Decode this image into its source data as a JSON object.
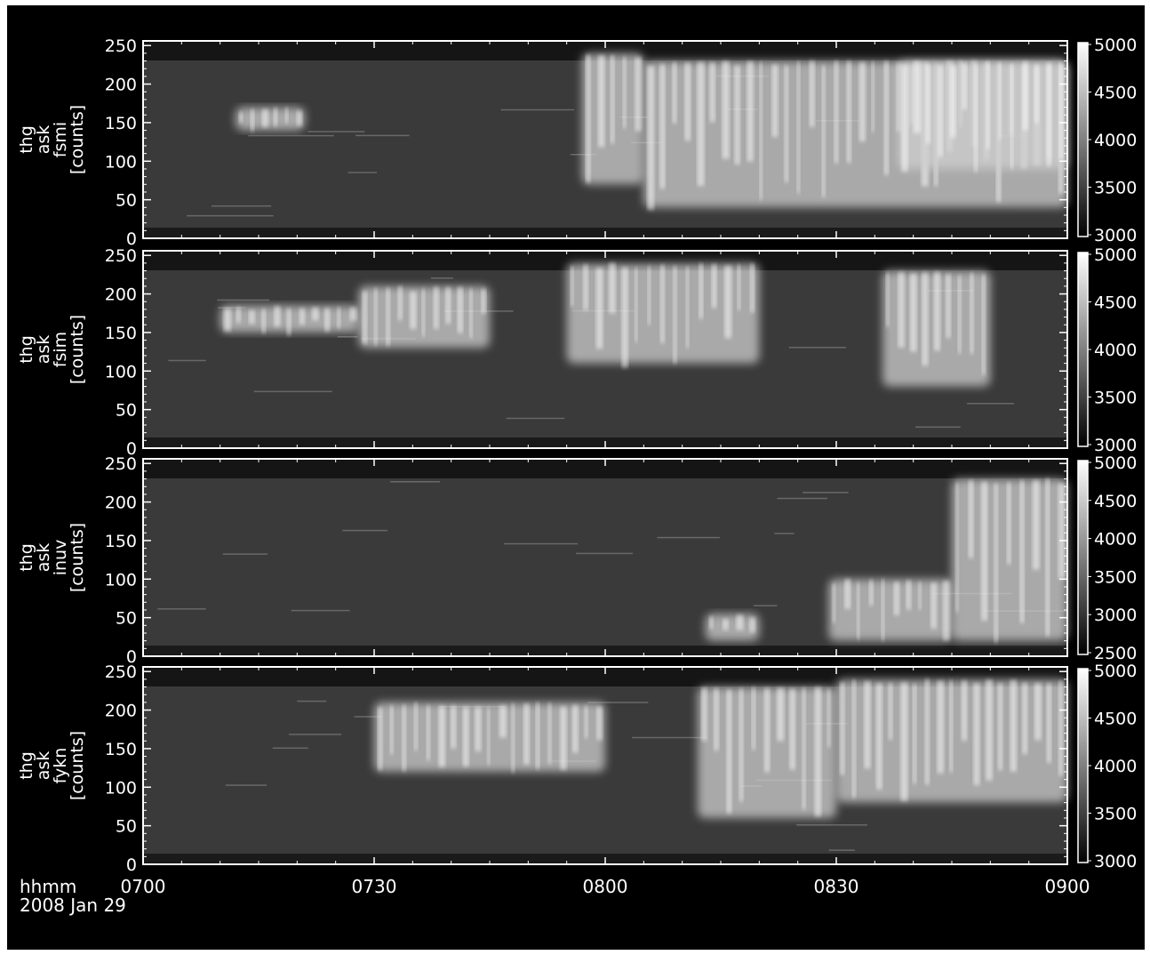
{
  "chart_data": {
    "type": "heatmap",
    "time_axis": {
      "tick_labels": [
        "0700",
        "0730",
        "0800",
        "0830",
        "0900"
      ],
      "unit_label": "hhmm",
      "date_label": "2008 Jan 29",
      "range": [
        "0700",
        "0900"
      ]
    },
    "panels": [
      {
        "ylabel": [
          "thg",
          "ask",
          "fsmi",
          "[counts]"
        ],
        "y_ticks": [
          "250",
          "200",
          "150",
          "100",
          "50",
          "0"
        ],
        "ylim": [
          0,
          256
        ],
        "colorbar": {
          "ticks": [
            "5000",
            "4500",
            "4000",
            "3500",
            "3000"
          ],
          "range": [
            3000,
            5000
          ]
        },
        "bright_features": [
          {
            "t_start": "0712",
            "t_end": "0721",
            "y_low": 140,
            "y_high": 170
          },
          {
            "t_start": "0757",
            "t_end": "0805",
            "y_low": 70,
            "y_high": 240
          },
          {
            "t_start": "0805",
            "t_end": "0900",
            "y_low": 40,
            "y_high": 230
          },
          {
            "t_start": "0838",
            "t_end": "0900",
            "y_low": 90,
            "y_high": 230
          }
        ]
      },
      {
        "ylabel": [
          "thg",
          "ask",
          "fsim",
          "[counts]"
        ],
        "y_ticks": [
          "250",
          "200",
          "150",
          "100",
          "50",
          "0"
        ],
        "ylim": [
          0,
          256
        ],
        "colorbar": {
          "ticks": [
            "5000",
            "4500",
            "4000",
            "3500",
            "3000"
          ],
          "range": [
            3000,
            5000
          ]
        },
        "bright_features": [
          {
            "t_start": "0710",
            "t_end": "0728",
            "y_low": 150,
            "y_high": 185
          },
          {
            "t_start": "0728",
            "t_end": "0745",
            "y_low": 130,
            "y_high": 210
          },
          {
            "t_start": "0755",
            "t_end": "0820",
            "y_low": 110,
            "y_high": 240
          },
          {
            "t_start": "0836",
            "t_end": "0850",
            "y_low": 80,
            "y_high": 230
          }
        ]
      },
      {
        "ylabel": [
          "thg",
          "ask",
          "inuv",
          "[counts]"
        ],
        "y_ticks": [
          "250",
          "200",
          "150",
          "100",
          "50",
          "0"
        ],
        "ylim": [
          0,
          256
        ],
        "colorbar": {
          "ticks": [
            "5000",
            "4500",
            "4000",
            "3500",
            "3000",
            "2500"
          ],
          "range": [
            2500,
            5000
          ]
        },
        "bright_features": [
          {
            "t_start": "0813",
            "t_end": "0820",
            "y_low": 20,
            "y_high": 55
          },
          {
            "t_start": "0829",
            "t_end": "0845",
            "y_low": 20,
            "y_high": 100
          },
          {
            "t_start": "0845",
            "t_end": "0900",
            "y_low": 20,
            "y_high": 230
          }
        ]
      },
      {
        "ylabel": [
          "thg",
          "ask",
          "fykn",
          "[counts]"
        ],
        "y_ticks": [
          "250",
          "200",
          "150",
          "100",
          "50",
          "0"
        ],
        "ylim": [
          0,
          256
        ],
        "colorbar": {
          "ticks": [
            "5000",
            "4500",
            "4000",
            "3500",
            "3000"
          ],
          "range": [
            3000,
            5000
          ]
        },
        "bright_features": [
          {
            "t_start": "0730",
            "t_end": "0800",
            "y_low": 120,
            "y_high": 210
          },
          {
            "t_start": "0812",
            "t_end": "0830",
            "y_low": 60,
            "y_high": 230
          },
          {
            "t_start": "0830",
            "t_end": "0900",
            "y_low": 80,
            "y_high": 240
          }
        ]
      }
    ]
  }
}
